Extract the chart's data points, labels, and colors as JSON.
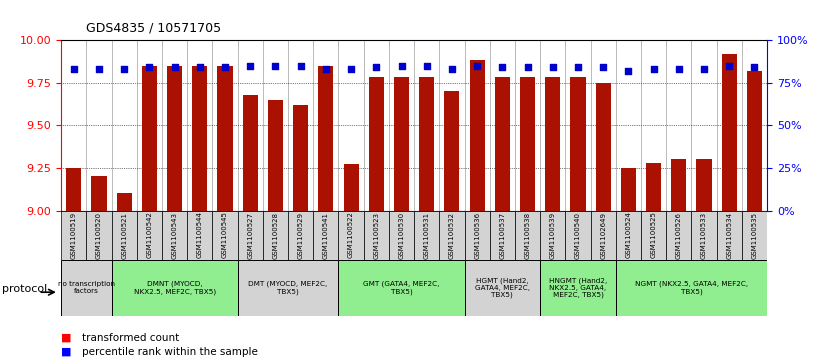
{
  "title": "GDS4835 / 10571705",
  "samples": [
    "GSM1100519",
    "GSM1100520",
    "GSM1100521",
    "GSM1100542",
    "GSM1100543",
    "GSM1100544",
    "GSM1100545",
    "GSM1100527",
    "GSM1100528",
    "GSM1100529",
    "GSM1100541",
    "GSM1100522",
    "GSM1100523",
    "GSM1100530",
    "GSM1100531",
    "GSM1100532",
    "GSM1100536",
    "GSM1100537",
    "GSM1100538",
    "GSM1100539",
    "GSM1100540",
    "GSM1102649",
    "GSM1100524",
    "GSM1100525",
    "GSM1100526",
    "GSM1100533",
    "GSM1100534",
    "GSM1100535"
  ],
  "bar_values": [
    9.25,
    9.2,
    9.1,
    9.85,
    9.85,
    9.85,
    9.85,
    9.68,
    9.65,
    9.62,
    9.85,
    9.27,
    9.78,
    9.78,
    9.78,
    9.7,
    9.88,
    9.78,
    9.78,
    9.78,
    9.78,
    9.75,
    9.25,
    9.28,
    9.3,
    9.3,
    9.92,
    9.82
  ],
  "dot_values": [
    83,
    83,
    83,
    84,
    84,
    84,
    84,
    85,
    85,
    85,
    83,
    83,
    84,
    85,
    85,
    83,
    85,
    84,
    84,
    84,
    84,
    84,
    82,
    83,
    83,
    83,
    85,
    84
  ],
  "groups": [
    {
      "label": "no transcription\nfactors",
      "start": 0,
      "end": 2,
      "color": "#d3d3d3"
    },
    {
      "label": "DMNT (MYOCD,\nNKX2.5, MEF2C, TBX5)",
      "start": 2,
      "end": 7,
      "color": "#90ee90"
    },
    {
      "label": "DMT (MYOCD, MEF2C,\nTBX5)",
      "start": 7,
      "end": 11,
      "color": "#d3d3d3"
    },
    {
      "label": "GMT (GATA4, MEF2C,\nTBX5)",
      "start": 11,
      "end": 16,
      "color": "#90ee90"
    },
    {
      "label": "HGMT (Hand2,\nGATA4, MEF2C,\nTBX5)",
      "start": 16,
      "end": 19,
      "color": "#d3d3d3"
    },
    {
      "label": "HNGMT (Hand2,\nNKX2.5, GATA4,\nMEF2C, TBX5)",
      "start": 19,
      "end": 22,
      "color": "#90ee90"
    },
    {
      "label": "NGMT (NKX2.5, GATA4, MEF2C,\nTBX5)",
      "start": 22,
      "end": 28,
      "color": "#90ee90"
    }
  ],
  "ylim_left": [
    9.0,
    10.0
  ],
  "ylim_right": [
    0,
    100
  ],
  "yticks_left": [
    9.0,
    9.25,
    9.5,
    9.75,
    10.0
  ],
  "yticks_right": [
    0,
    25,
    50,
    75,
    100
  ],
  "bar_color": "#aa1100",
  "dot_color": "#0000cc",
  "plot_bg": "#ffffff"
}
